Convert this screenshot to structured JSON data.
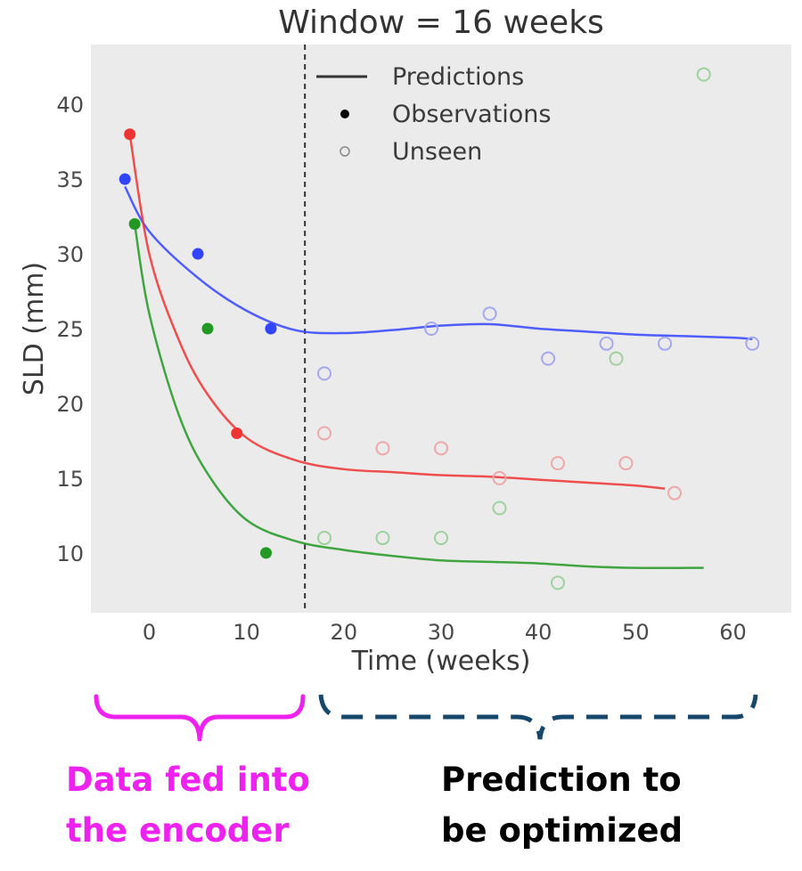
{
  "chart_data": {
    "type": "scatter",
    "title": "Window = 16 weeks",
    "xlabel": "Time (weeks)",
    "ylabel": "SLD (mm)",
    "xlim": [
      -6,
      66
    ],
    "ylim": [
      6,
      44
    ],
    "xticks": [
      0,
      10,
      20,
      30,
      40,
      50,
      60
    ],
    "yticks": [
      10,
      15,
      20,
      25,
      30,
      35,
      40
    ],
    "grid": false,
    "background": "#ebebeb",
    "legend_position": "top",
    "legend": [
      {
        "label": "Predictions",
        "marker": "line",
        "color": "#333333"
      },
      {
        "label": "Observations",
        "marker": "filled-dot",
        "color": "#000000"
      },
      {
        "label": "Unseen",
        "marker": "open-dot",
        "color": "#888888"
      }
    ],
    "window_line": {
      "x": 16,
      "style": "dashed",
      "color": "#333333"
    },
    "series": [
      {
        "color": "#3344ff",
        "light_color": "#a4a8ef",
        "observations": [
          [
            -2.5,
            35
          ],
          [
            5,
            30
          ],
          [
            12.5,
            25
          ]
        ],
        "unseen": [
          [
            18,
            22
          ],
          [
            29,
            25
          ],
          [
            35,
            26
          ],
          [
            41,
            23
          ],
          [
            47,
            24
          ],
          [
            53,
            24
          ],
          [
            62,
            24
          ]
        ],
        "prediction": [
          [
            -2.5,
            34.5
          ],
          [
            0,
            31.5
          ],
          [
            5,
            28.4
          ],
          [
            10,
            26.2
          ],
          [
            15,
            24.9
          ],
          [
            20,
            24.7
          ],
          [
            25,
            24.9
          ],
          [
            30,
            25.2
          ],
          [
            35,
            25.3
          ],
          [
            40,
            25.0
          ],
          [
            45,
            24.8
          ],
          [
            50,
            24.6
          ],
          [
            55,
            24.5
          ],
          [
            60,
            24.4
          ],
          [
            62,
            24.3
          ]
        ]
      },
      {
        "color": "#ee3333",
        "light_color": "#eea8a8",
        "observations": [
          [
            -2,
            38
          ],
          [
            9,
            18
          ]
        ],
        "unseen": [
          [
            18,
            18
          ],
          [
            24,
            17
          ],
          [
            30,
            17
          ],
          [
            36,
            15
          ],
          [
            42,
            16
          ],
          [
            49,
            16
          ],
          [
            54,
            14
          ]
        ],
        "prediction": [
          [
            -2,
            38
          ],
          [
            0,
            30
          ],
          [
            3,
            24.3
          ],
          [
            6,
            20.6
          ],
          [
            10,
            17.7
          ],
          [
            15,
            16.2
          ],
          [
            20,
            15.6
          ],
          [
            25,
            15.4
          ],
          [
            30,
            15.2
          ],
          [
            35,
            15.1
          ],
          [
            40,
            14.9
          ],
          [
            45,
            14.7
          ],
          [
            50,
            14.5
          ],
          [
            53,
            14.3
          ]
        ]
      },
      {
        "color": "#229922",
        "light_color": "#9fd19f",
        "observations": [
          [
            -1.5,
            32
          ],
          [
            6,
            25
          ],
          [
            12,
            10
          ]
        ],
        "unseen": [
          [
            18,
            11
          ],
          [
            24,
            11
          ],
          [
            30,
            11
          ],
          [
            36,
            13
          ],
          [
            42,
            8
          ],
          [
            48,
            23
          ],
          [
            57,
            42
          ]
        ],
        "prediction": [
          [
            -1.5,
            32
          ],
          [
            0,
            26
          ],
          [
            3,
            19.3
          ],
          [
            6,
            15.3
          ],
          [
            10,
            12.2
          ],
          [
            15,
            10.8
          ],
          [
            20,
            10.2
          ],
          [
            25,
            9.8
          ],
          [
            30,
            9.5
          ],
          [
            35,
            9.4
          ],
          [
            40,
            9.3
          ],
          [
            45,
            9.1
          ],
          [
            50,
            9.0
          ],
          [
            57,
            9.0
          ]
        ]
      }
    ]
  },
  "annotations": {
    "left_brace_color": "#ee22ee",
    "right_brace_color": "#17476a",
    "left_caption_lines": [
      "Data fed into",
      "the encoder"
    ],
    "right_caption_lines": [
      "Prediction to",
      "be optimized"
    ]
  }
}
